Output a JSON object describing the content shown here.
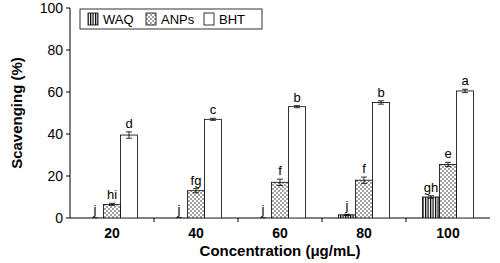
{
  "chart_data": {
    "type": "bar",
    "x_label": "Concentration (μg/mL)",
    "y_label": "Scavenging (%)",
    "categories": [
      "20",
      "40",
      "60",
      "80",
      "100"
    ],
    "series": [
      {
        "name": "WAQ",
        "color": "#000000",
        "values": [
          0,
          0,
          0,
          1.5,
          10
        ],
        "errors": [
          0,
          0,
          0,
          0.3,
          0.6
        ],
        "letters": [
          "j",
          "j",
          "j",
          "j",
          "gh"
        ]
      },
      {
        "name": "ANPs",
        "color": "#000000",
        "values": [
          6.5,
          13,
          17,
          18,
          25.5
        ],
        "errors": [
          0.5,
          1,
          1.5,
          1.5,
          1
        ],
        "letters": [
          "hi",
          "fg",
          "f",
          "f",
          "e"
        ]
      },
      {
        "name": "BHT",
        "color": "#000000",
        "values": [
          39.5,
          47,
          53,
          55,
          60.5
        ],
        "errors": [
          1.5,
          0.5,
          0.5,
          0.8,
          0.8
        ],
        "letters": [
          "d",
          "c",
          "b",
          "b",
          "a"
        ]
      }
    ],
    "ylim": [
      0,
      100
    ],
    "yticks": [
      0,
      20,
      40,
      60,
      80,
      100
    ],
    "legend": "top-left",
    "grid": false
  }
}
